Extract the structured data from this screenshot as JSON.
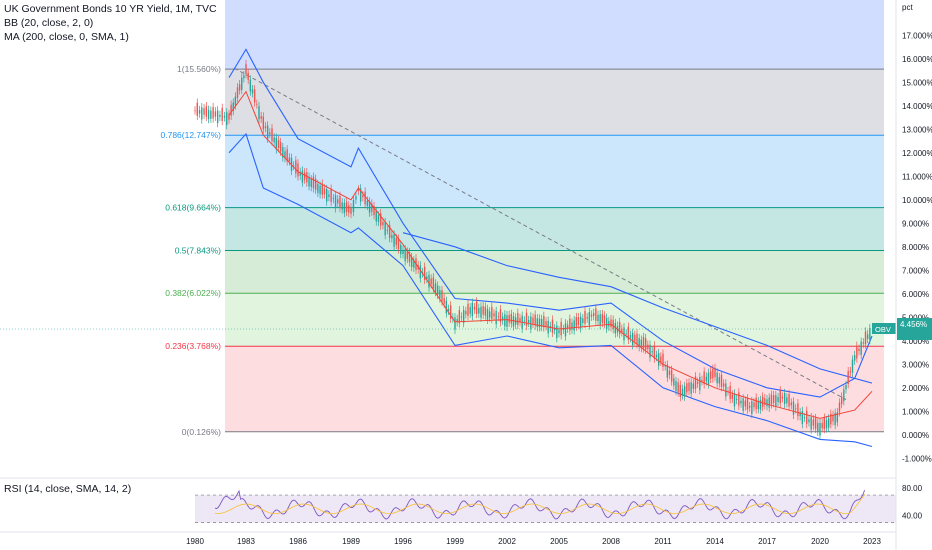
{
  "header": {
    "title": "UK Government Bonds 10 YR Yield, 1M, TVC",
    "indicator_bb": "BB (20, close, 2, 0)",
    "indicator_ma": "MA (200, close, 0, SMA, 1)",
    "indicator_rsi": "RSI (14, close, SMA, 14, 2)"
  },
  "colors": {
    "up": "#26a69a",
    "down": "#ef5350",
    "bb": "#2962ff",
    "ma": "#2962ff",
    "basis": "#f44336",
    "rsi": "#7e57c2"
  },
  "chart_data": {
    "type": "line",
    "title": "UK Government Bonds 10 YR Yield, 1M, TVC",
    "ylabel": "pct",
    "ylim": [
      -1.5,
      18.5
    ],
    "yticks": [
      "-1.000%",
      "0.000%",
      "1.000%",
      "2.000%",
      "3.000%",
      "4.000%",
      "5.000%",
      "6.000%",
      "7.000%",
      "8.000%",
      "9.000%",
      "10.000%",
      "11.000%",
      "12.000%",
      "13.000%",
      "14.000%",
      "15.000%",
      "16.000%",
      "17.000%"
    ],
    "ytick_values": [
      -1,
      0,
      1,
      2,
      3,
      4,
      5,
      6,
      7,
      8,
      9,
      10,
      11,
      12,
      13,
      14,
      15,
      16,
      17
    ],
    "xticks": [
      "1980",
      "1983",
      "1986",
      "1989",
      "1996",
      "1999",
      "2002",
      "2005",
      "2008",
      "2011",
      "2014",
      "2017",
      "2020",
      "2023"
    ],
    "fib_levels": [
      {
        "label": "1(15.560%)",
        "value": 15.56,
        "color": "#787b86"
      },
      {
        "label": "0.786(12.747%)",
        "value": 12.747,
        "color": "#2196f3"
      },
      {
        "label": "0.618(9.664%)",
        "value": 9.664,
        "color": "#089981"
      },
      {
        "label": "0.5(7.843%)",
        "value": 7.843,
        "color": "#089981"
      },
      {
        "label": "0.382(6.022%)",
        "value": 6.022,
        "color": "#4caf50"
      },
      {
        "label": "0.236(3.768%)",
        "value": 3.768,
        "color": "#f23645"
      },
      {
        "label": "0(0.126%)",
        "value": 0.126,
        "color": "#787b86"
      }
    ],
    "series": [
      {
        "name": "UK 10Y Yield",
        "x": [
          "1980",
          "1982",
          "1983",
          "1984",
          "1986",
          "1987",
          "1989",
          "1990",
          "1996",
          "1998",
          "1999",
          "2000",
          "2002",
          "2004",
          "2005",
          "2007",
          "2008",
          "2010",
          "2011",
          "2012",
          "2014",
          "2015",
          "2016",
          "2017",
          "2018",
          "2019",
          "2020",
          "2021",
          "2022",
          "2023"
        ],
        "values": [
          13.8,
          13.5,
          15.5,
          13.2,
          11.2,
          10.6,
          9.5,
          10.4,
          7.8,
          6.2,
          4.8,
          5.4,
          4.9,
          4.8,
          4.4,
          5.1,
          4.7,
          3.8,
          3.1,
          1.8,
          2.6,
          1.6,
          1.2,
          1.4,
          1.6,
          0.8,
          0.3,
          0.8,
          3.3,
          4.5
        ]
      },
      {
        "name": "BB Upper",
        "x": [
          "1982",
          "1983",
          "1984",
          "1986",
          "1989",
          "1990",
          "1996",
          "1999",
          "2002",
          "2005",
          "2008",
          "2011",
          "2014",
          "2017",
          "2020",
          "2022",
          "2023"
        ],
        "values": [
          15.2,
          16.4,
          15.0,
          12.6,
          11.4,
          12.2,
          9.0,
          5.8,
          5.6,
          5.3,
          5.6,
          4.0,
          2.8,
          2.0,
          1.6,
          2.4,
          4.2
        ]
      },
      {
        "name": "BB Lower",
        "x": [
          "1982",
          "1983",
          "1984",
          "1986",
          "1989",
          "1990",
          "1996",
          "1999",
          "2002",
          "2005",
          "2008",
          "2011",
          "2014",
          "2017",
          "2020",
          "2022",
          "2023"
        ],
        "values": [
          12.0,
          12.8,
          10.5,
          9.8,
          8.6,
          8.8,
          7.2,
          3.8,
          4.2,
          3.7,
          3.8,
          2.0,
          1.2,
          0.6,
          -0.2,
          -0.3,
          -0.5
        ]
      },
      {
        "name": "MA 200",
        "x": [
          "1996",
          "1999",
          "2002",
          "2005",
          "2008",
          "2011",
          "2014",
          "2017",
          "2020",
          "2023"
        ],
        "values": [
          8.6,
          8.0,
          7.2,
          6.7,
          6.3,
          5.4,
          4.6,
          3.8,
          2.8,
          2.2
        ]
      }
    ],
    "last_value_label": "4.456%",
    "last_value_sub": "OBV",
    "rsi": {
      "ylim": [
        22,
        92
      ],
      "yticks": [
        "40.00",
        "80.00"
      ],
      "ytick_values": [
        40,
        80
      ],
      "bands": [
        30,
        70
      ]
    }
  }
}
